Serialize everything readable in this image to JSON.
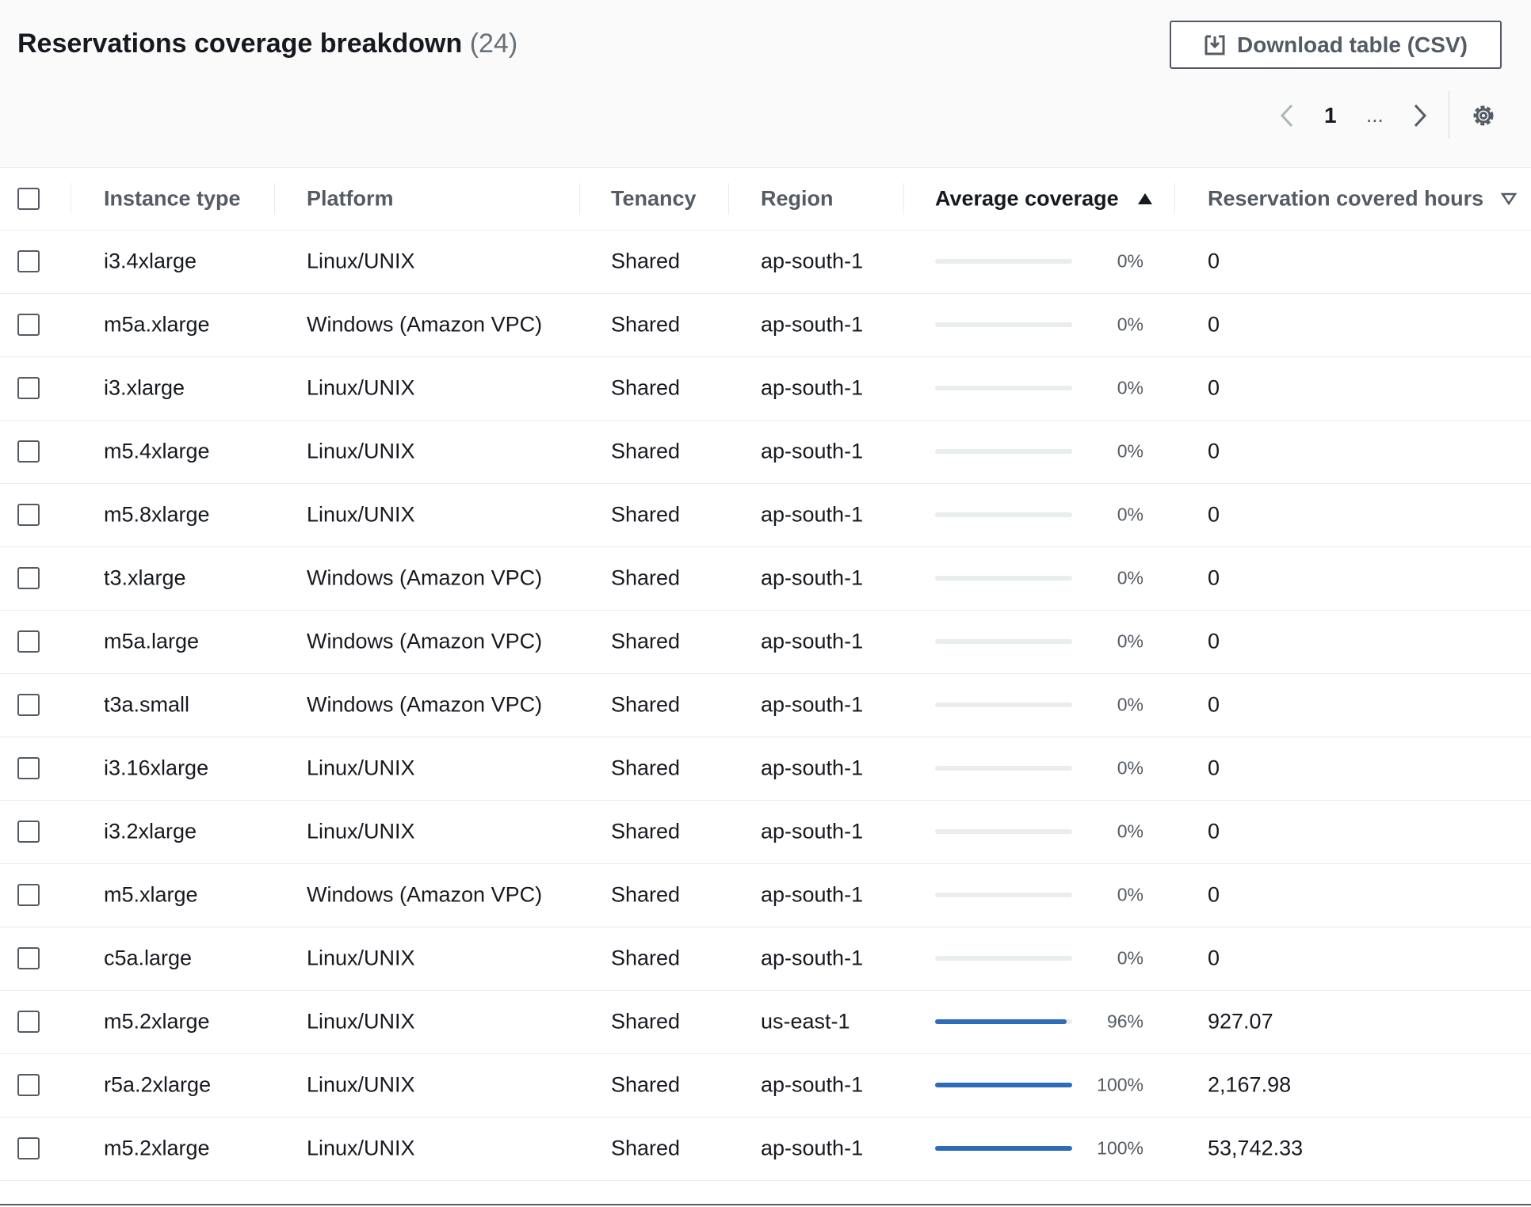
{
  "header": {
    "title": "Reservations coverage breakdown",
    "count": "(24)",
    "download": "Download table (CSV)",
    "page": "1",
    "ellipsis": "..."
  },
  "table": {
    "columns": [
      "Instance type",
      "Platform",
      "Tenancy",
      "Region",
      "Average coverage",
      "Reservation covered hours"
    ],
    "rows": [
      {
        "instance": "i3.4xlarge",
        "platform": "Linux/UNIX",
        "tenancy": "Shared",
        "region": "ap-south-1",
        "coverage": {
          "value": 0,
          "label": "0%"
        },
        "hours": "0"
      },
      {
        "instance": "m5a.xlarge",
        "platform": "Windows (Amazon VPC)",
        "tenancy": "Shared",
        "region": "ap-south-1",
        "coverage": {
          "value": 0,
          "label": "0%"
        },
        "hours": "0"
      },
      {
        "instance": "i3.xlarge",
        "platform": "Linux/UNIX",
        "tenancy": "Shared",
        "region": "ap-south-1",
        "coverage": {
          "value": 0,
          "label": "0%"
        },
        "hours": "0"
      },
      {
        "instance": "m5.4xlarge",
        "platform": "Linux/UNIX",
        "tenancy": "Shared",
        "region": "ap-south-1",
        "coverage": {
          "value": 0,
          "label": "0%"
        },
        "hours": "0"
      },
      {
        "instance": "m5.8xlarge",
        "platform": "Linux/UNIX",
        "tenancy": "Shared",
        "region": "ap-south-1",
        "coverage": {
          "value": 0,
          "label": "0%"
        },
        "hours": "0"
      },
      {
        "instance": "t3.xlarge",
        "platform": "Windows (Amazon VPC)",
        "tenancy": "Shared",
        "region": "ap-south-1",
        "coverage": {
          "value": 0,
          "label": "0%"
        },
        "hours": "0"
      },
      {
        "instance": "m5a.large",
        "platform": "Windows (Amazon VPC)",
        "tenancy": "Shared",
        "region": "ap-south-1",
        "coverage": {
          "value": 0,
          "label": "0%"
        },
        "hours": "0"
      },
      {
        "instance": "t3a.small",
        "platform": "Windows (Amazon VPC)",
        "tenancy": "Shared",
        "region": "ap-south-1",
        "coverage": {
          "value": 0,
          "label": "0%"
        },
        "hours": "0"
      },
      {
        "instance": "i3.16xlarge",
        "platform": "Linux/UNIX",
        "tenancy": "Shared",
        "region": "ap-south-1",
        "coverage": {
          "value": 0,
          "label": "0%"
        },
        "hours": "0"
      },
      {
        "instance": "i3.2xlarge",
        "platform": "Linux/UNIX",
        "tenancy": "Shared",
        "region": "ap-south-1",
        "coverage": {
          "value": 0,
          "label": "0%"
        },
        "hours": "0"
      },
      {
        "instance": "m5.xlarge",
        "platform": "Windows (Amazon VPC)",
        "tenancy": "Shared",
        "region": "ap-south-1",
        "coverage": {
          "value": 0,
          "label": "0%"
        },
        "hours": "0"
      },
      {
        "instance": "c5a.large",
        "platform": "Linux/UNIX",
        "tenancy": "Shared",
        "region": "ap-south-1",
        "coverage": {
          "value": 0,
          "label": "0%"
        },
        "hours": "0"
      },
      {
        "instance": "m5.2xlarge",
        "platform": "Linux/UNIX",
        "tenancy": "Shared",
        "region": "us-east-1",
        "coverage": {
          "value": 96,
          "label": "96%"
        },
        "hours": "927.07"
      },
      {
        "instance": "r5a.2xlarge",
        "platform": "Linux/UNIX",
        "tenancy": "Shared",
        "region": "ap-south-1",
        "coverage": {
          "value": 100,
          "label": "100%"
        },
        "hours": "2,167.98"
      },
      {
        "instance": "m5.2xlarge",
        "platform": "Linux/UNIX",
        "tenancy": "Shared",
        "region": "ap-south-1",
        "coverage": {
          "value": 100,
          "label": "100%"
        },
        "hours": "53,742.33"
      }
    ]
  }
}
